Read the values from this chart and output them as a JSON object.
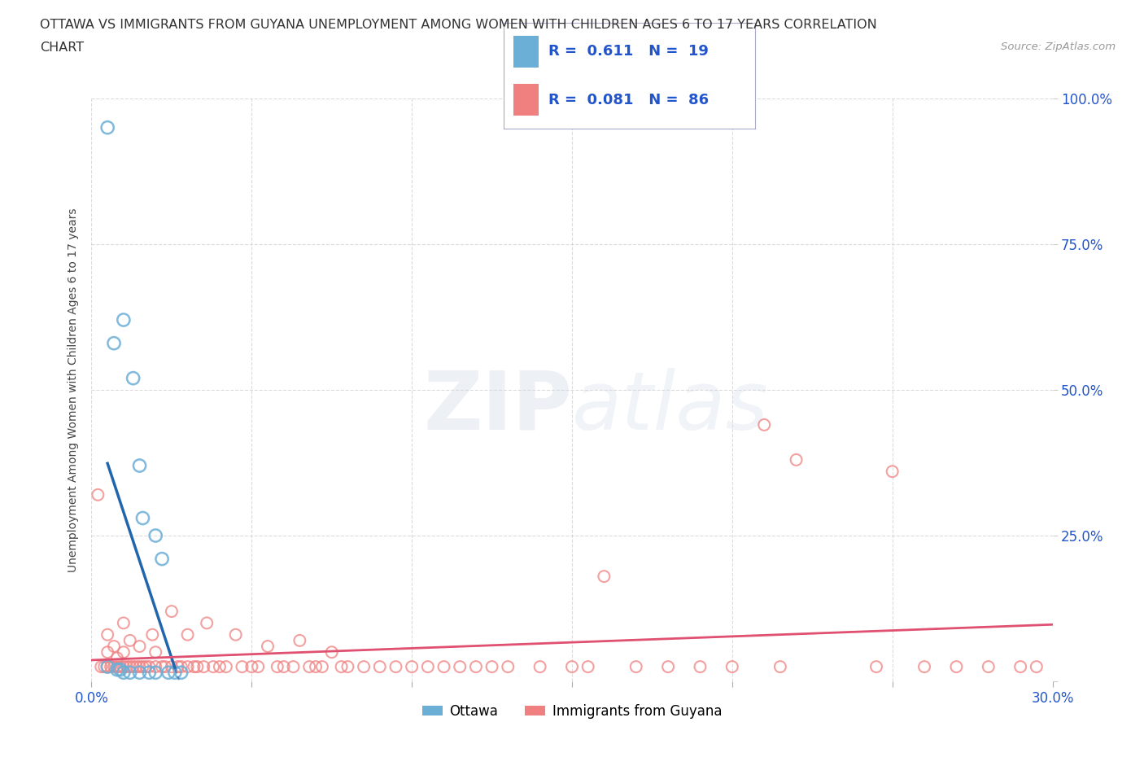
{
  "title_line1": "OTTAWA VS IMMIGRANTS FROM GUYANA UNEMPLOYMENT AMONG WOMEN WITH CHILDREN AGES 6 TO 17 YEARS CORRELATION",
  "title_line2": "CHART",
  "source": "Source: ZipAtlas.com",
  "ylabel": "Unemployment Among Women with Children Ages 6 to 17 years",
  "xlim": [
    0.0,
    0.3
  ],
  "ylim": [
    0.0,
    1.0
  ],
  "ottawa_color": "#6baed6",
  "guyana_color": "#f08080",
  "ottawa_line_color": "#2166ac",
  "guyana_line_color": "#e05070",
  "R_ottawa": 0.611,
  "N_ottawa": 19,
  "R_guyana": 0.081,
  "N_guyana": 86,
  "ottawa_x": [
    0.005,
    0.005,
    0.007,
    0.008,
    0.009,
    0.01,
    0.01,
    0.012,
    0.013,
    0.015,
    0.015,
    0.016,
    0.018,
    0.02,
    0.02,
    0.022,
    0.024,
    0.026,
    0.028
  ],
  "ottawa_y": [
    0.95,
    0.025,
    0.58,
    0.02,
    0.02,
    0.62,
    0.015,
    0.015,
    0.52,
    0.015,
    0.37,
    0.28,
    0.015,
    0.25,
    0.015,
    0.21,
    0.015,
    0.015,
    0.015
  ],
  "guyana_x": [
    0.002,
    0.003,
    0.004,
    0.005,
    0.005,
    0.005,
    0.006,
    0.007,
    0.007,
    0.008,
    0.008,
    0.009,
    0.01,
    0.01,
    0.01,
    0.011,
    0.012,
    0.012,
    0.013,
    0.014,
    0.015,
    0.015,
    0.016,
    0.017,
    0.018,
    0.019,
    0.02,
    0.02,
    0.022,
    0.023,
    0.025,
    0.025,
    0.027,
    0.028,
    0.03,
    0.03,
    0.032,
    0.033,
    0.035,
    0.036,
    0.038,
    0.04,
    0.042,
    0.045,
    0.047,
    0.05,
    0.052,
    0.055,
    0.058,
    0.06,
    0.063,
    0.065,
    0.068,
    0.07,
    0.072,
    0.075,
    0.078,
    0.08,
    0.085,
    0.09,
    0.095,
    0.1,
    0.105,
    0.11,
    0.115,
    0.12,
    0.125,
    0.13,
    0.14,
    0.15,
    0.155,
    0.16,
    0.17,
    0.18,
    0.19,
    0.2,
    0.215,
    0.22,
    0.245,
    0.26,
    0.27,
    0.28,
    0.29,
    0.295,
    0.25,
    0.21
  ],
  "guyana_y": [
    0.32,
    0.025,
    0.025,
    0.025,
    0.05,
    0.08,
    0.025,
    0.025,
    0.06,
    0.025,
    0.04,
    0.025,
    0.025,
    0.05,
    0.1,
    0.025,
    0.025,
    0.07,
    0.025,
    0.025,
    0.025,
    0.06,
    0.025,
    0.025,
    0.025,
    0.08,
    0.025,
    0.05,
    0.025,
    0.025,
    0.025,
    0.12,
    0.025,
    0.025,
    0.025,
    0.08,
    0.025,
    0.025,
    0.025,
    0.1,
    0.025,
    0.025,
    0.025,
    0.08,
    0.025,
    0.025,
    0.025,
    0.06,
    0.025,
    0.025,
    0.025,
    0.07,
    0.025,
    0.025,
    0.025,
    0.05,
    0.025,
    0.025,
    0.025,
    0.025,
    0.025,
    0.025,
    0.025,
    0.025,
    0.025,
    0.025,
    0.025,
    0.025,
    0.025,
    0.025,
    0.025,
    0.18,
    0.025,
    0.025,
    0.025,
    0.025,
    0.025,
    0.38,
    0.025,
    0.025,
    0.025,
    0.025,
    0.025,
    0.025,
    0.36,
    0.44
  ],
  "watermark_zip": "ZIP",
  "watermark_atlas": "atlas",
  "background_color": "#ffffff",
  "grid_color": "#cccccc",
  "legend_text_color": "#2255cc"
}
